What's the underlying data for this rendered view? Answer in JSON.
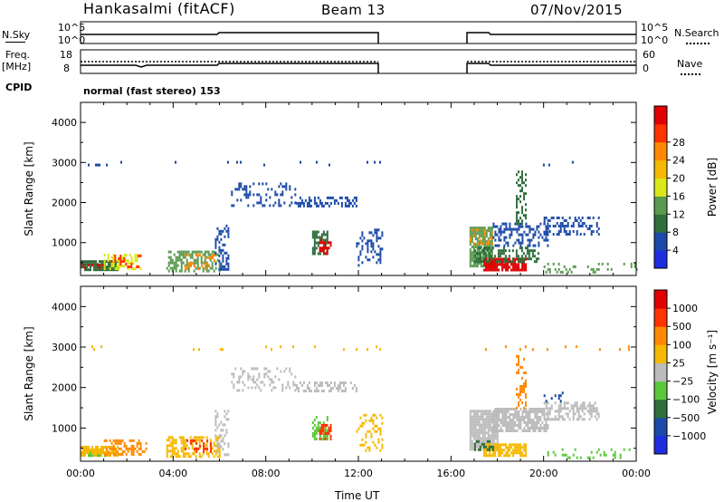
{
  "header": {
    "station": "Hankasalmi (fitACF)",
    "beam": "Beam 13",
    "date": "07/Nov/2015"
  },
  "params": {
    "nsky_label": "N.Sky",
    "nsearch_label": "N.Search",
    "nsky_ticks": [
      "10^5",
      "10^0"
    ],
    "nsky_right_ticks": [
      "10^5",
      "10^0"
    ],
    "freq_label": "Freq.",
    "freq_unit": "[MHz]",
    "freq_ticks": [
      "18",
      "8"
    ],
    "nave_label": "Nave",
    "nave_ticks": [
      "60",
      "0"
    ],
    "cpid_label": "CPID",
    "cpid_value": "normal (fast stereo) 153"
  },
  "chart_data": [
    {
      "type": "heatmap",
      "name": "power",
      "ylabel": "Slant Range [km]",
      "xlabel": "Time UT",
      "xlim": [
        "00:00",
        "24:00"
      ],
      "ylim": [
        180,
        4500
      ],
      "ytick_labels": [
        "1000",
        "2000",
        "3000",
        "4000"
      ],
      "colorbar": {
        "label": "Power [dB]",
        "ticks": [
          "4",
          "8",
          "12",
          "16",
          "20",
          "24",
          "28"
        ],
        "colors": [
          "#1f2ee0",
          "#1c4aa8",
          "#2f6e3c",
          "#5a9a50",
          "#d9e81a",
          "#f5b800",
          "#ff8a00",
          "#ff3300",
          "#e00000"
        ]
      },
      "regions": [
        {
          "t0": 0.0,
          "t1": 1.6,
          "r0": 320,
          "r1": 560,
          "color": "#2f6e3c",
          "density": 0.85
        },
        {
          "t0": 0.0,
          "t1": 1.0,
          "r0": 340,
          "r1": 470,
          "color": "#e00000",
          "density": 0.45
        },
        {
          "t0": 1.0,
          "t1": 2.6,
          "r0": 380,
          "r1": 720,
          "color": "#d9e81a",
          "density": 0.45
        },
        {
          "t0": 1.3,
          "t1": 2.6,
          "r0": 420,
          "r1": 700,
          "color": "#ff3300",
          "density": 0.25
        },
        {
          "t0": 3.7,
          "t1": 6.0,
          "r0": 320,
          "r1": 800,
          "color": "#5a9a50",
          "density": 0.5
        },
        {
          "t0": 4.5,
          "t1": 5.8,
          "r0": 380,
          "r1": 720,
          "color": "#ff8a00",
          "density": 0.35
        },
        {
          "t0": 5.8,
          "t1": 6.4,
          "r0": 350,
          "r1": 1450,
          "color": "#1c4aa8",
          "density": 0.35
        },
        {
          "t0": 6.5,
          "t1": 9.3,
          "r0": 1900,
          "r1": 2500,
          "color": "#1c4aa8",
          "density": 0.25
        },
        {
          "t0": 9.3,
          "t1": 11.9,
          "r0": 1900,
          "r1": 2150,
          "color": "#1c4aa8",
          "density": 0.45
        },
        {
          "t0": 10.0,
          "t1": 10.7,
          "r0": 700,
          "r1": 1300,
          "color": "#2f6e3c",
          "density": 0.6
        },
        {
          "t0": 10.3,
          "t1": 10.8,
          "r0": 750,
          "r1": 1100,
          "color": "#e00000",
          "density": 0.55
        },
        {
          "t0": 11.9,
          "t1": 13.0,
          "r0": 450,
          "r1": 1350,
          "color": "#1c4aa8",
          "density": 0.3
        },
        {
          "t0": 16.8,
          "t1": 17.8,
          "r0": 450,
          "r1": 1400,
          "color": "#5a9a50",
          "density": 0.85
        },
        {
          "t0": 16.8,
          "t1": 17.8,
          "r0": 950,
          "r1": 1350,
          "color": "#ff8a00",
          "density": 0.35
        },
        {
          "t0": 17.4,
          "t1": 19.2,
          "r0": 300,
          "r1": 620,
          "color": "#e00000",
          "density": 0.85
        },
        {
          "t0": 17.0,
          "t1": 19.8,
          "r0": 500,
          "r1": 900,
          "color": "#2f6e3c",
          "density": 0.5
        },
        {
          "t0": 17.8,
          "t1": 20.2,
          "r0": 900,
          "r1": 1500,
          "color": "#1c4aa8",
          "density": 0.45
        },
        {
          "t0": 18.8,
          "t1": 19.2,
          "r0": 1500,
          "r1": 2800,
          "color": "#2f6e3c",
          "density": 0.45
        },
        {
          "t0": 20.0,
          "t1": 22.4,
          "r0": 1200,
          "r1": 1650,
          "color": "#1c4aa8",
          "density": 0.45
        },
        {
          "t0": 20.0,
          "t1": 24.0,
          "r0": 250,
          "r1": 500,
          "color": "#5a9a50",
          "density": 0.18
        },
        {
          "t0": 0.0,
          "t1": 13.0,
          "r0": 2960,
          "r1": 3040,
          "color": "#1c4aa8",
          "density": 0.05
        },
        {
          "t0": 17.0,
          "t1": 24.0,
          "r0": 2960,
          "r1": 3040,
          "color": "#1c4aa8",
          "density": 0.05
        }
      ]
    },
    {
      "type": "heatmap",
      "name": "velocity",
      "ylabel": "Slant Range [km]",
      "xlabel": "Time UT",
      "xlim": [
        "00:00",
        "24:00"
      ],
      "ylim": [
        180,
        4500
      ],
      "ytick_labels": [
        "1000",
        "2000",
        "3000",
        "4000"
      ],
      "xtick_labels": [
        "00:00",
        "04:00",
        "08:00",
        "12:00",
        "16:00",
        "20:00",
        "00:00"
      ],
      "colorbar": {
        "label": "Velocity [m s⁻¹]",
        "ticks": [
          "1000",
          "500",
          "100",
          "25",
          "−25",
          "−100",
          "−500",
          "−1000"
        ],
        "colors": [
          "#1f2ee0",
          "#1c4aa8",
          "#2f6e3c",
          "#5ac83a",
          "#bbbbbb",
          "#f5b800",
          "#ff8a00",
          "#ff3300",
          "#e00000"
        ]
      },
      "regions": [
        {
          "t0": 0.0,
          "t1": 1.6,
          "r0": 320,
          "r1": 560,
          "color": "#f5b800",
          "density": 0.85
        },
        {
          "t0": 0.0,
          "t1": 1.2,
          "r0": 320,
          "r1": 420,
          "color": "#5ac83a",
          "density": 0.25
        },
        {
          "t0": 1.0,
          "t1": 2.8,
          "r0": 380,
          "r1": 720,
          "color": "#ff8a00",
          "density": 0.45
        },
        {
          "t0": 3.7,
          "t1": 6.0,
          "r0": 320,
          "r1": 800,
          "color": "#f5b800",
          "density": 0.5
        },
        {
          "t0": 4.5,
          "t1": 5.8,
          "r0": 400,
          "r1": 720,
          "color": "#ff3300",
          "density": 0.25
        },
        {
          "t0": 5.8,
          "t1": 6.4,
          "r0": 350,
          "r1": 1450,
          "color": "#bbbbbb",
          "density": 0.3
        },
        {
          "t0": 6.5,
          "t1": 9.3,
          "r0": 1900,
          "r1": 2500,
          "color": "#bbbbbb",
          "density": 0.25
        },
        {
          "t0": 9.3,
          "t1": 11.9,
          "r0": 1900,
          "r1": 2150,
          "color": "#bbbbbb",
          "density": 0.45
        },
        {
          "t0": 10.0,
          "t1": 10.7,
          "r0": 700,
          "r1": 1300,
          "color": "#5ac83a",
          "density": 0.55
        },
        {
          "t0": 10.3,
          "t1": 10.8,
          "r0": 750,
          "r1": 1100,
          "color": "#ff3300",
          "density": 0.45
        },
        {
          "t0": 11.9,
          "t1": 13.0,
          "r0": 450,
          "r1": 1350,
          "color": "#f5b800",
          "density": 0.3
        },
        {
          "t0": 16.8,
          "t1": 18.0,
          "r0": 450,
          "r1": 1450,
          "color": "#bbbbbb",
          "density": 0.9
        },
        {
          "t0": 17.4,
          "t1": 19.2,
          "r0": 300,
          "r1": 620,
          "color": "#f5b800",
          "density": 0.85
        },
        {
          "t0": 17.0,
          "t1": 17.8,
          "r0": 450,
          "r1": 700,
          "color": "#2f6e3c",
          "density": 0.45
        },
        {
          "t0": 17.8,
          "t1": 20.2,
          "r0": 900,
          "r1": 1500,
          "color": "#bbbbbb",
          "density": 0.75
        },
        {
          "t0": 18.8,
          "t1": 19.2,
          "r0": 1500,
          "r1": 2800,
          "color": "#ff8a00",
          "density": 0.4
        },
        {
          "t0": 20.0,
          "t1": 22.4,
          "r0": 1200,
          "r1": 1650,
          "color": "#bbbbbb",
          "density": 0.5
        },
        {
          "t0": 20.0,
          "t1": 21.0,
          "r0": 1650,
          "r1": 1900,
          "color": "#1c4aa8",
          "density": 0.15
        },
        {
          "t0": 20.0,
          "t1": 24.0,
          "r0": 250,
          "r1": 500,
          "color": "#5ac83a",
          "density": 0.15
        },
        {
          "t0": 0.0,
          "t1": 13.0,
          "r0": 2960,
          "r1": 3040,
          "color": "#f5b800",
          "density": 0.05
        },
        {
          "t0": 17.0,
          "t1": 24.0,
          "r0": 2960,
          "r1": 3040,
          "color": "#ff8a00",
          "density": 0.05
        }
      ]
    }
  ]
}
